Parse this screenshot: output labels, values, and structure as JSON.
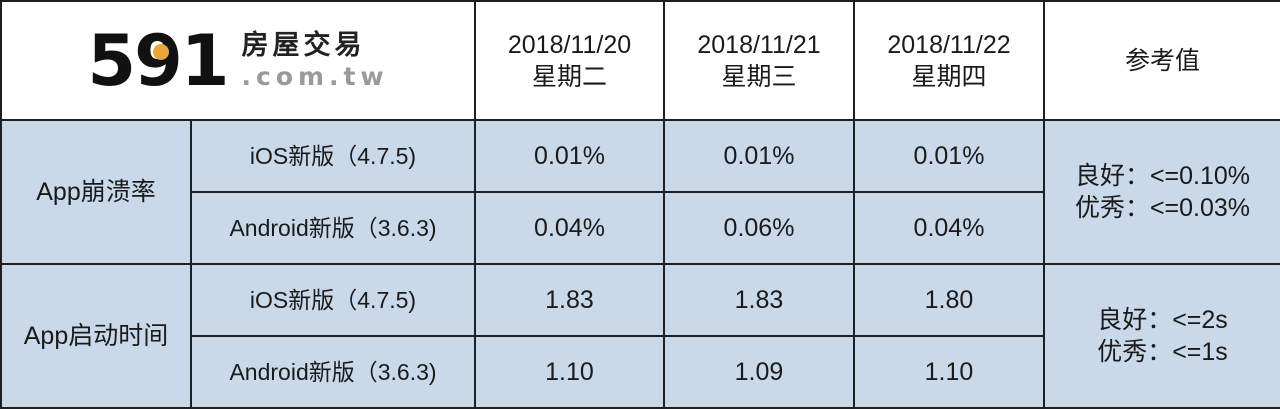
{
  "logo": {
    "number": "591",
    "chinese": "房屋交易",
    "domain": ".com.tw",
    "accent_color": "#e8a53a"
  },
  "header": {
    "columns": [
      {
        "date": "2018/11/20",
        "weekday": "星期二"
      },
      {
        "date": "2018/11/21",
        "weekday": "星期三"
      },
      {
        "date": "2018/11/22",
        "weekday": "星期四"
      }
    ],
    "reference_label": "参考值"
  },
  "sections": [
    {
      "label": "App崩溃率",
      "rows": [
        {
          "platform": "iOS新版（4.7.5)",
          "values": [
            "0.01%",
            "0.01%",
            "0.01%"
          ]
        },
        {
          "platform": "Android新版（3.6.3)",
          "values": [
            "0.04%",
            "0.06%",
            "0.04%"
          ]
        }
      ],
      "reference": {
        "good": "良好：<=0.10%",
        "excellent": "优秀：<=0.03%"
      }
    },
    {
      "label": "App启动时间",
      "rows": [
        {
          "platform": "iOS新版（4.7.5)",
          "values": [
            "1.83",
            "1.83",
            "1.80"
          ]
        },
        {
          "platform": "Android新版（3.6.3)",
          "values": [
            "1.10",
            "1.09",
            "1.10"
          ]
        }
      ],
      "reference": {
        "good": "良好：<=2s",
        "excellent": "优秀：<=1s"
      }
    }
  ],
  "colors": {
    "body_bg": "#c9d9ea",
    "header_bg": "#ffffff",
    "border": "#1f1f1f"
  }
}
